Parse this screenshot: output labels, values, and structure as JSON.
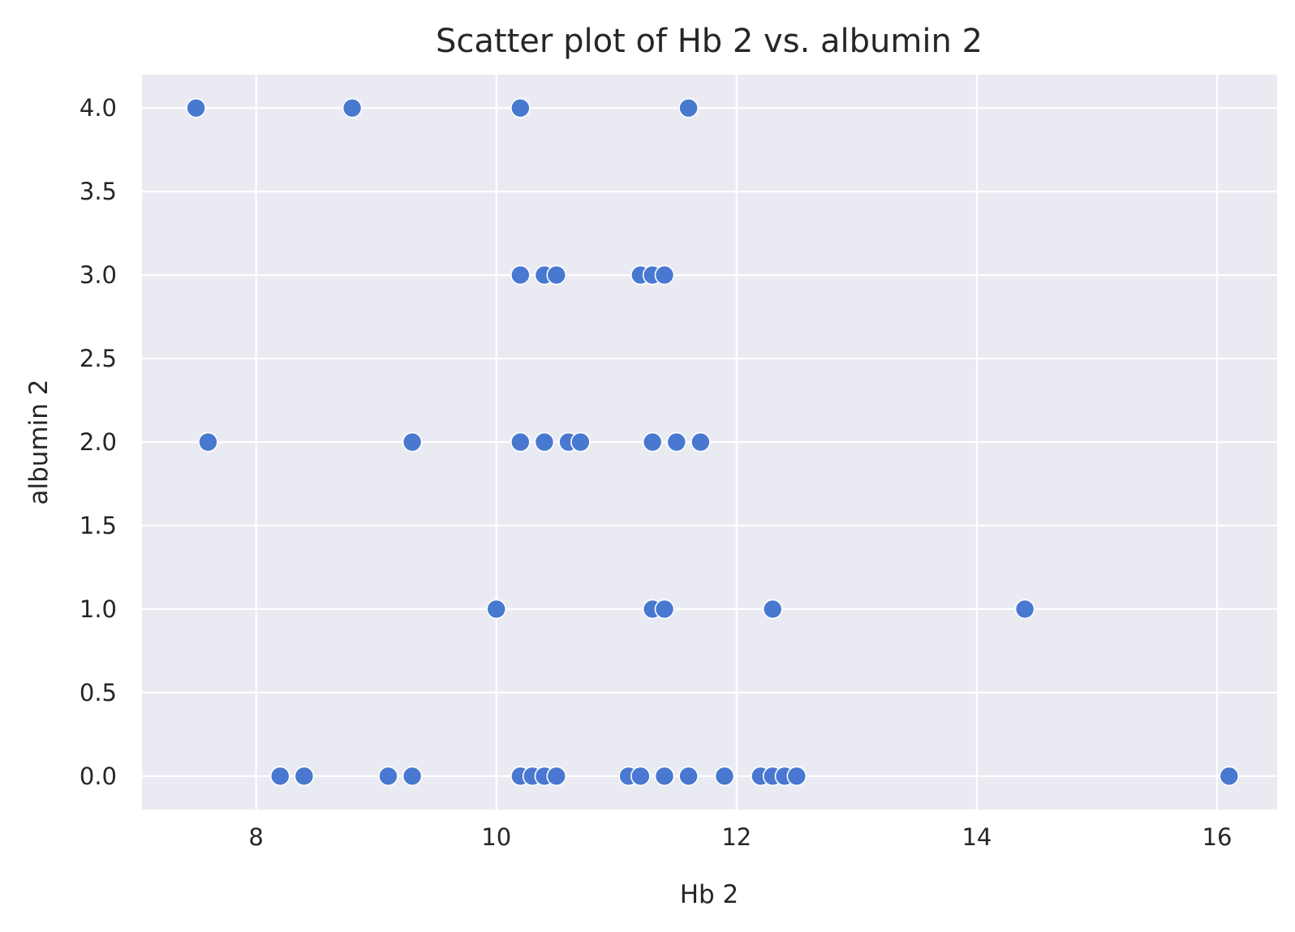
{
  "chart_data": {
    "type": "scatter",
    "title": "Scatter plot of Hb 2 vs. albumin 2",
    "xlabel": "Hb 2",
    "ylabel": "albumin 2",
    "xlim": [
      7.05,
      16.5
    ],
    "ylim": [
      -0.2,
      4.2
    ],
    "xticks": [
      8,
      10,
      12,
      14,
      16
    ],
    "xtick_labels": [
      "8",
      "10",
      "12",
      "14",
      "16"
    ],
    "yticks": [
      0.0,
      0.5,
      1.0,
      1.5,
      2.0,
      2.5,
      3.0,
      3.5,
      4.0
    ],
    "ytick_labels": [
      "0.0",
      "0.5",
      "1.0",
      "1.5",
      "2.0",
      "2.5",
      "3.0",
      "3.5",
      "4.0"
    ],
    "grid": true,
    "colors": {
      "background": "#eaeaf2",
      "grid": "#ffffff",
      "marker": "#4878d0",
      "marker_edge": "#ffffff"
    },
    "series": [
      {
        "points": [
          [
            7.5,
            4.0
          ],
          [
            8.8,
            4.0
          ],
          [
            10.2,
            4.0
          ],
          [
            11.6,
            4.0
          ],
          [
            10.2,
            3.0
          ],
          [
            10.4,
            3.0
          ],
          [
            10.5,
            3.0
          ],
          [
            11.2,
            3.0
          ],
          [
            11.3,
            3.0
          ],
          [
            11.4,
            3.0
          ],
          [
            7.6,
            2.0
          ],
          [
            9.3,
            2.0
          ],
          [
            10.2,
            2.0
          ],
          [
            10.4,
            2.0
          ],
          [
            10.6,
            2.0
          ],
          [
            10.7,
            2.0
          ],
          [
            11.3,
            2.0
          ],
          [
            11.5,
            2.0
          ],
          [
            11.7,
            2.0
          ],
          [
            10.0,
            1.0
          ],
          [
            11.3,
            1.0
          ],
          [
            11.4,
            1.0
          ],
          [
            12.3,
            1.0
          ],
          [
            14.4,
            1.0
          ],
          [
            8.2,
            0.0
          ],
          [
            8.4,
            0.0
          ],
          [
            9.1,
            0.0
          ],
          [
            9.3,
            0.0
          ],
          [
            10.2,
            0.0
          ],
          [
            10.3,
            0.0
          ],
          [
            10.4,
            0.0
          ],
          [
            10.5,
            0.0
          ],
          [
            11.1,
            0.0
          ],
          [
            11.2,
            0.0
          ],
          [
            11.4,
            0.0
          ],
          [
            11.6,
            0.0
          ],
          [
            11.9,
            0.0
          ],
          [
            12.2,
            0.0
          ],
          [
            12.3,
            0.0
          ],
          [
            12.4,
            0.0
          ],
          [
            12.5,
            0.0
          ],
          [
            16.1,
            0.0
          ]
        ]
      }
    ]
  }
}
